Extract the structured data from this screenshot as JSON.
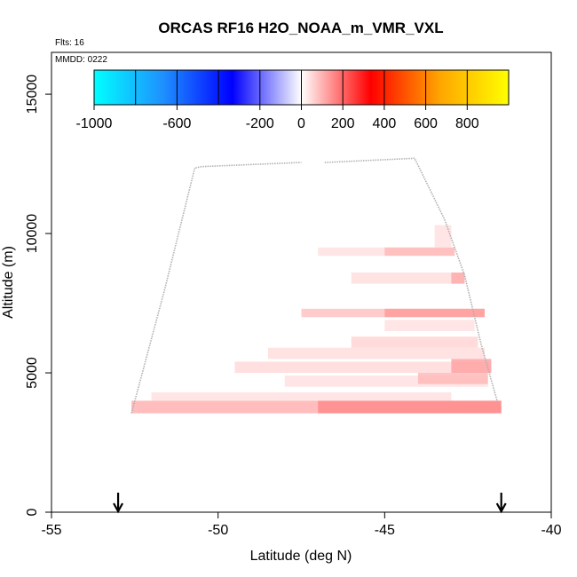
{
  "chart_data": {
    "type": "heatmap",
    "title": "ORCAS RF16 H2O_NOAA_m_VMR_VXL",
    "flights_label": "Flts: 16",
    "date_label": "MMDD: 0222",
    "xlabel": "Latitude (deg N)",
    "ylabel": "Altitude (m)",
    "xlim": [
      -55,
      -40
    ],
    "ylim": [
      0,
      16500
    ],
    "x_ticks": [
      -55,
      -50,
      -45,
      -40
    ],
    "y_ticks": [
      0,
      5000,
      10000,
      15000
    ],
    "grid": false,
    "colorbar": {
      "range": [
        -1000,
        1000
      ],
      "ticks": [
        -1000,
        -600,
        -200,
        0,
        200,
        400,
        600,
        800
      ],
      "tick_labels": [
        "-1000",
        "-600",
        "-200",
        "0",
        "200",
        "400",
        "600",
        "800"
      ],
      "divisions": [
        -1000,
        -800,
        -600,
        -400,
        -200,
        0,
        200,
        400,
        600,
        800,
        1000
      ],
      "colors": [
        "#00ffff",
        "#1e90ff",
        "#0000ff",
        "#ffffff",
        "#ff0000",
        "#ffa500",
        "#ffff00"
      ],
      "placement": "top"
    },
    "cells": [
      {
        "lat0": -52.6,
        "lat1": -41.5,
        "alt0": 3550,
        "alt1": 4000,
        "value": 100
      },
      {
        "lat0": -47.0,
        "lat1": -41.5,
        "alt0": 3550,
        "alt1": 4000,
        "value": 150
      },
      {
        "lat0": -52.0,
        "lat1": -43.0,
        "alt0": 4000,
        "alt1": 4300,
        "value": 40
      },
      {
        "lat0": -48.0,
        "lat1": -41.9,
        "alt0": 4500,
        "alt1": 4900,
        "value": 40
      },
      {
        "lat0": -44.0,
        "lat1": -41.9,
        "alt0": 4600,
        "alt1": 5000,
        "value": 90
      },
      {
        "lat0": -49.5,
        "lat1": -41.8,
        "alt0": 5000,
        "alt1": 5400,
        "value": 50
      },
      {
        "lat0": -43.0,
        "lat1": -41.8,
        "alt0": 5000,
        "alt1": 5500,
        "value": 120
      },
      {
        "lat0": -48.5,
        "lat1": -42.0,
        "alt0": 5500,
        "alt1": 5900,
        "value": 45
      },
      {
        "lat0": -46.0,
        "lat1": -42.2,
        "alt0": 5900,
        "alt1": 6300,
        "value": 55
      },
      {
        "lat0": -45.0,
        "lat1": -42.3,
        "alt0": 6500,
        "alt1": 6900,
        "value": 40
      },
      {
        "lat0": -47.5,
        "lat1": -42.0,
        "alt0": 7000,
        "alt1": 7300,
        "value": 80
      },
      {
        "lat0": -45.0,
        "lat1": -42.0,
        "alt0": 7000,
        "alt1": 7300,
        "value": 130
      },
      {
        "lat0": -46.0,
        "lat1": -42.6,
        "alt0": 8200,
        "alt1": 8600,
        "value": 45
      },
      {
        "lat0": -43.0,
        "lat1": -42.6,
        "alt0": 8200,
        "alt1": 8600,
        "value": 110
      },
      {
        "lat0": -47.0,
        "lat1": -42.9,
        "alt0": 9200,
        "alt1": 9500,
        "value": 40
      },
      {
        "lat0": -45.0,
        "lat1": -42.9,
        "alt0": 9200,
        "alt1": 9500,
        "value": 90
      },
      {
        "lat0": -43.5,
        "lat1": -43.0,
        "alt0": 9500,
        "alt1": 10300,
        "value": 40
      }
    ],
    "flight_track": [
      {
        "lat": -52.6,
        "alt": 3550
      },
      {
        "lat": -51.6,
        "alt": 8000
      },
      {
        "lat": -50.7,
        "alt": 12350
      },
      {
        "lat": -50.5,
        "alt": 12400
      },
      {
        "lat": -47.5,
        "alt": 12550
      },
      {
        "gap": true
      },
      {
        "lat": -46.8,
        "alt": 12550
      },
      {
        "lat": -44.1,
        "alt": 12700
      },
      {
        "lat": -43.2,
        "alt": 10500
      },
      {
        "lat": -42.6,
        "alt": 8500
      },
      {
        "lat": -42.1,
        "alt": 6000
      },
      {
        "lat": -41.6,
        "alt": 3900
      }
    ],
    "markers": [
      {
        "lat": -53.0,
        "type": "down-arrow"
      },
      {
        "lat": -41.5,
        "type": "down-arrow"
      }
    ]
  }
}
